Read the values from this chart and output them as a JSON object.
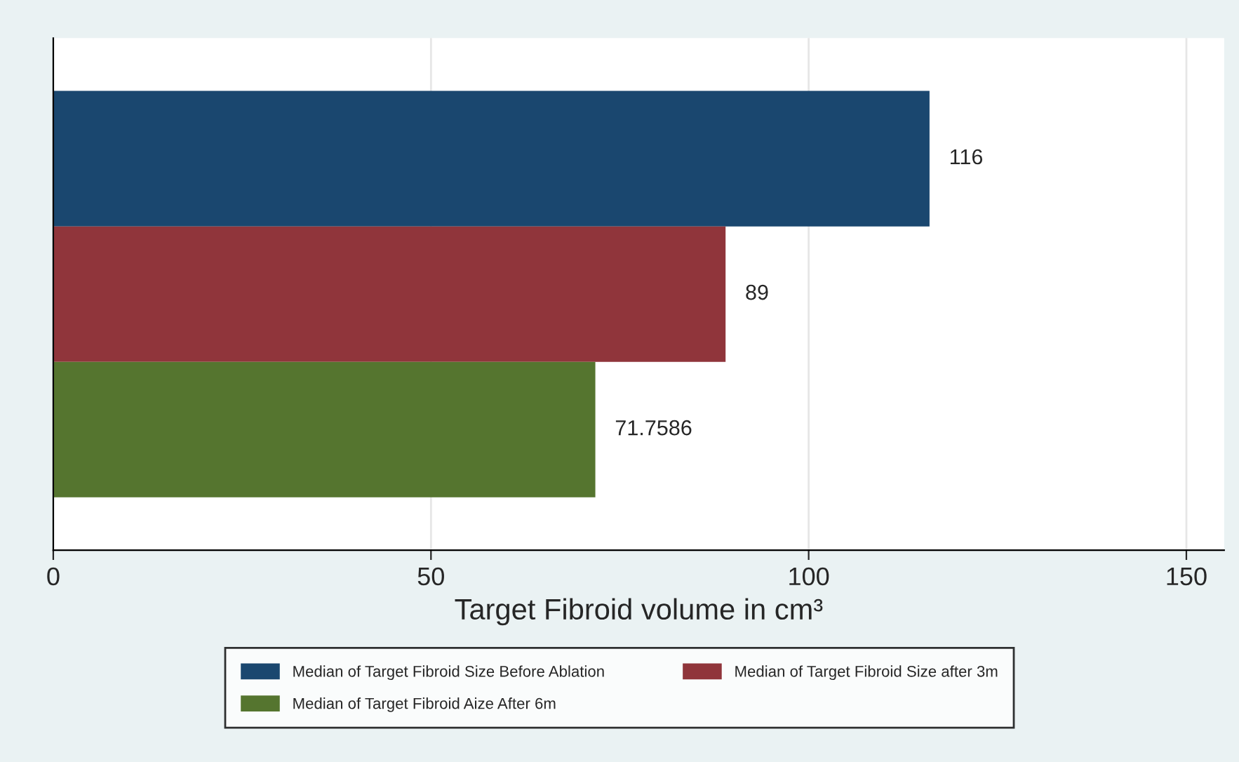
{
  "chart_data": {
    "type": "bar",
    "orientation": "horizontal",
    "xlabel": "Target Fibroid volume in cm³",
    "categories": [
      null
    ],
    "series": [
      {
        "name": "Median of Target Fibroid Size Before Ablation",
        "color": "#1a476f",
        "values": [
          116
        ]
      },
      {
        "name": "Median of Target Fibroid Size after 3m",
        "color": "#90353b",
        "values": [
          89
        ]
      },
      {
        "name": "Median of Target Fibroid Aize After 6m",
        "color": "#55752f",
        "values": [
          71.7586
        ]
      }
    ],
    "xlim": [
      0,
      155
    ],
    "xticks": [
      0,
      50,
      100,
      150
    ],
    "grid": "x",
    "legend": "bottom",
    "data_labels": true
  }
}
